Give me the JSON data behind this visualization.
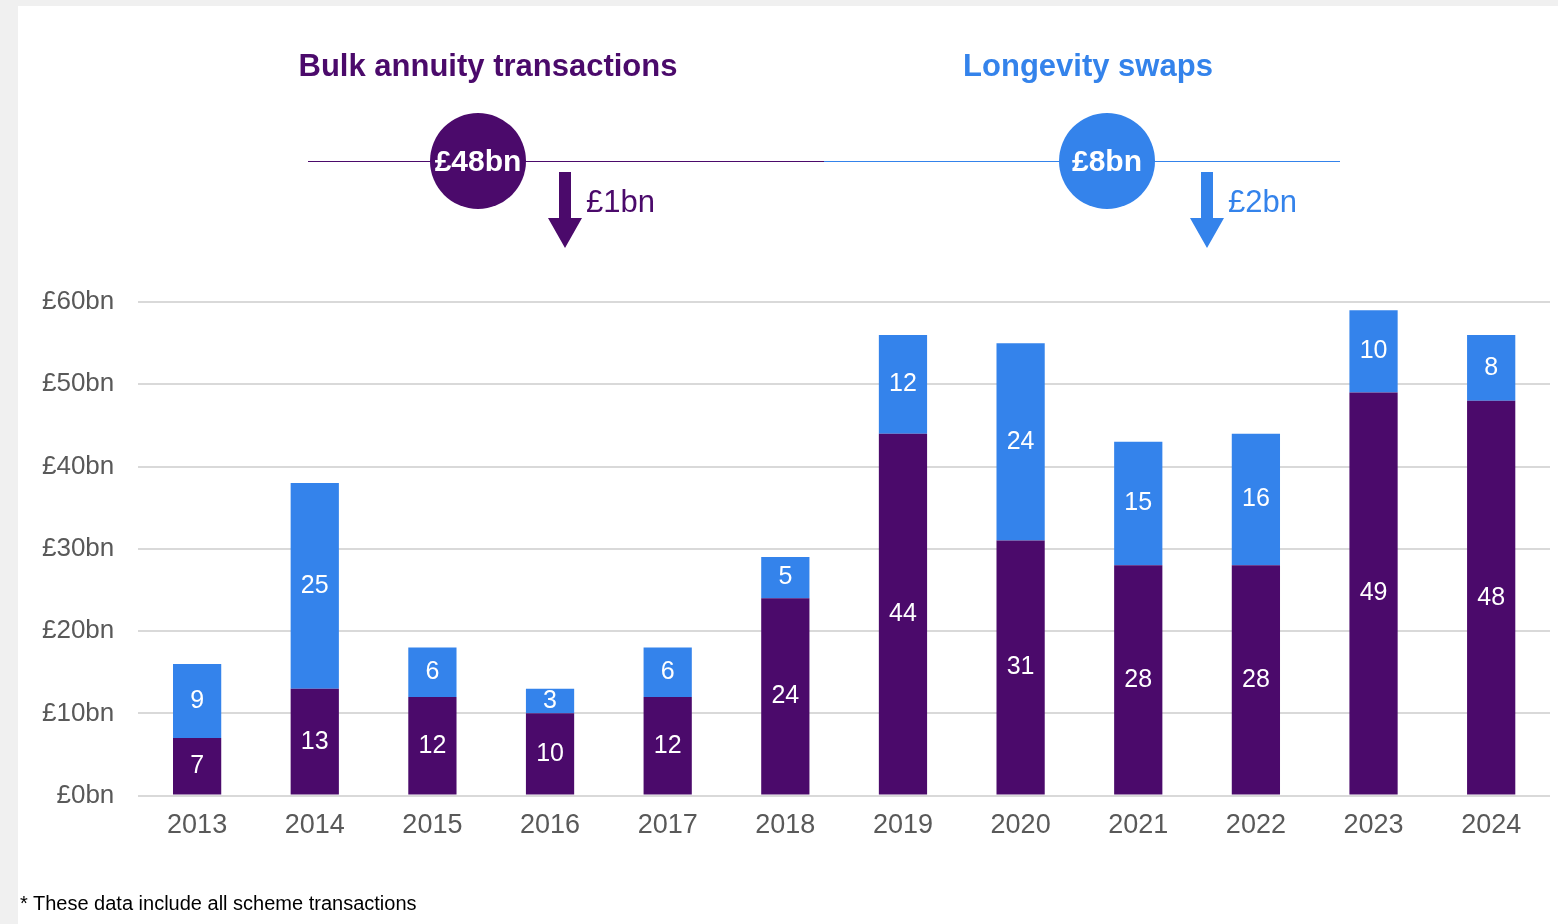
{
  "chart_data": {
    "type": "bar",
    "stacked": true,
    "data_labels": true,
    "grid": "y",
    "legend": "top",
    "categories": [
      "2013",
      "2014",
      "2015",
      "2016",
      "2017",
      "2018",
      "2019",
      "2020",
      "2021",
      "2022",
      "2023",
      "2024"
    ],
    "series": [
      {
        "name": "Bulk annuity transactions",
        "color": "#4b0a6b",
        "values": [
          7,
          13,
          12,
          10,
          12,
          24,
          44,
          31,
          28,
          28,
          49,
          48
        ]
      },
      {
        "name": "Longevity swaps",
        "color": "#3483eb",
        "values": [
          9,
          25,
          6,
          3,
          6,
          5,
          12,
          24,
          15,
          16,
          10,
          8
        ]
      }
    ],
    "ylim": [
      0,
      60
    ],
    "yticks": [
      {
        "value": 0,
        "label": "£0bn"
      },
      {
        "value": 10,
        "label": "£10bn"
      },
      {
        "value": 20,
        "label": "£20bn"
      },
      {
        "value": 30,
        "label": "£30bn"
      },
      {
        "value": 40,
        "label": "£40bn"
      },
      {
        "value": 50,
        "label": "£50bn"
      },
      {
        "value": 60,
        "label": "£60bn"
      }
    ],
    "annotations": [
      "£48bn",
      "£1bn",
      "£8bn",
      "£2bn",
      "* These data include all scheme transactions"
    ]
  }
}
